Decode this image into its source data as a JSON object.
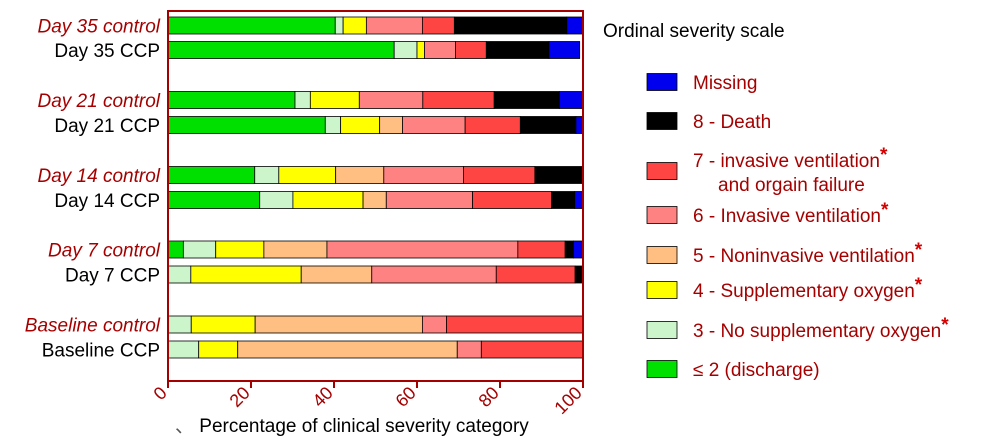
{
  "chart_data": {
    "type": "bar",
    "orientation": "horizontal",
    "stacked": true,
    "title": "",
    "xlabel": "Percentage of clinical severity category",
    "xlabel_prefix": "、",
    "xlim": [
      0,
      100
    ],
    "xticks": [
      "0",
      "20",
      "40",
      "60",
      "80",
      "100"
    ],
    "grid": false,
    "legend_title": "Ordinal severity scale",
    "legend_position": "right",
    "categories": [
      {
        "label": "Day 35 control",
        "italic": true,
        "red": true
      },
      {
        "label": "Day 35 CCP",
        "italic": false,
        "red": false
      },
      {
        "label": "Day 21 control",
        "italic": true,
        "red": true
      },
      {
        "label": "Day 21 CCP",
        "italic": false,
        "red": false
      },
      {
        "label": "Day 14 control",
        "italic": true,
        "red": true
      },
      {
        "label": "Day 14 CCP",
        "italic": false,
        "red": false
      },
      {
        "label": "Day 7 control",
        "italic": true,
        "red": true
      },
      {
        "label": "Day 7 CCP",
        "italic": false,
        "red": false
      },
      {
        "label": "Baseline control",
        "italic": true,
        "red": true
      },
      {
        "label": "Baseline CCP",
        "italic": false,
        "red": false
      }
    ],
    "series": [
      {
        "name": "≤ 2 (discharge)",
        "color": "#00e000",
        "star": false,
        "values": [
          40.3,
          54.5,
          30.6,
          37.9,
          20.9,
          22.1,
          3.7,
          0.0,
          0.0,
          0.0
        ]
      },
      {
        "name": "3 - No supplementary oxygen",
        "color": "#ccf5cc",
        "star": true,
        "values": [
          1.9,
          5.5,
          3.7,
          3.7,
          5.8,
          8.0,
          7.8,
          5.5,
          5.6,
          7.4
        ]
      },
      {
        "name": "4 - Supplementary oxygen",
        "color": "#ffff00",
        "star": true,
        "values": [
          5.6,
          1.8,
          11.8,
          9.4,
          13.7,
          16.9,
          11.6,
          26.6,
          15.4,
          9.4
        ]
      },
      {
        "name": "5 - Noninvasive ventilation",
        "color": "#ffbe82",
        "star": true,
        "values": [
          0.0,
          0.0,
          0.0,
          5.5,
          11.6,
          5.6,
          15.2,
          17.0,
          40.3,
          52.9
        ]
      },
      {
        "name": "6 - Invasive ventilation",
        "color": "#ff8282",
        "star": true,
        "values": [
          13.5,
          7.5,
          15.3,
          15.1,
          19.2,
          20.8,
          46.0,
          30.0,
          5.8,
          5.8
        ]
      },
      {
        "name": "7 - invasive ventilation and organ failure",
        "color": "#ff4444",
        "star": true,
        "values": [
          7.7,
          7.4,
          17.2,
          13.3,
          17.2,
          19.0,
          11.4,
          19.0,
          32.9,
          24.5
        ]
      },
      {
        "name": "8 - Death",
        "color": "#000000",
        "star": false,
        "values": [
          27.1,
          15.1,
          15.7,
          13.4,
          11.6,
          5.6,
          2.0,
          1.9,
          0.0,
          0.0
        ]
      },
      {
        "name": "Missing",
        "color": "#0000ee",
        "star": false,
        "values": [
          3.9,
          7.4,
          5.7,
          1.7,
          0.0,
          2.0,
          2.3,
          0.0,
          0.0,
          0.0
        ]
      }
    ],
    "legend_order": [
      {
        "lines": [
          "Missing"
        ],
        "color": "#0000ee",
        "star": false
      },
      {
        "lines": [
          "8 - Death"
        ],
        "color": "#000000",
        "star": false
      },
      {
        "lines": [
          "7 - invasive ventilation",
          "and orgain failure"
        ],
        "color": "#ff4444",
        "star": true
      },
      {
        "lines": [
          "6 - Invasive ventilation"
        ],
        "color": "#ff8282",
        "star": true
      },
      {
        "lines": [
          "5 - Noninvasive ventilation"
        ],
        "color": "#ffbe82",
        "star": true
      },
      {
        "lines": [
          "4 - Supplementary oxygen"
        ],
        "color": "#ffff00",
        "star": true
      },
      {
        "lines": [
          "3 - No supplementary oxygen"
        ],
        "color": "#ccf5cc",
        "star": true
      },
      {
        "lines": [
          "≤ 2 (discharge)"
        ],
        "color": "#00e000",
        "star": false
      }
    ],
    "colors": {
      "text_red": "#a50000",
      "axis": "#a50000",
      "star": "#d40000"
    }
  }
}
